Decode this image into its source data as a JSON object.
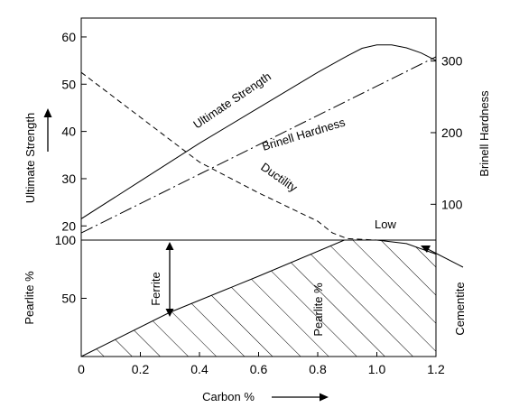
{
  "chart_data": [
    {
      "type": "line",
      "x_range": [
        0,
        1.2
      ],
      "y_left": {
        "label": "Ultimate Strength",
        "ticks": [
          20,
          30,
          40,
          50,
          60
        ],
        "range": [
          17,
          64
        ]
      },
      "y_right": {
        "label": "Brinell Hardness",
        "ticks": [
          100,
          200,
          300
        ],
        "range": [
          50,
          360
        ]
      },
      "series": [
        {
          "name": "Ultimate Strength",
          "axis": "left",
          "style": "solid",
          "points": [
            [
              0,
              21.5
            ],
            [
              0.2,
              29.5
            ],
            [
              0.4,
              37.5
            ],
            [
              0.6,
              45
            ],
            [
              0.8,
              52.5
            ],
            [
              0.9,
              56
            ],
            [
              0.95,
              57.6
            ],
            [
              1.0,
              58.3
            ],
            [
              1.05,
              58.3
            ],
            [
              1.1,
              57.7
            ],
            [
              1.15,
              56.6
            ],
            [
              1.2,
              55
            ]
          ]
        },
        {
          "name": "Brinell Hardness",
          "axis": "right",
          "style": "dash-dot",
          "points": [
            [
              0,
              60
            ],
            [
              0.4,
              142
            ],
            [
              0.8,
              224
            ],
            [
              1.2,
              306
            ]
          ]
        },
        {
          "name": "Ductility",
          "axis": "left",
          "style": "dashed",
          "points": [
            [
              0,
              52.5
            ],
            [
              0.2,
              43
            ],
            [
              0.4,
              33.5
            ],
            [
              0.6,
              27
            ],
            [
              0.8,
              21
            ],
            [
              0.85,
              18.5
            ],
            [
              0.9,
              17.3
            ],
            [
              1.0,
              17
            ]
          ]
        }
      ],
      "annotations": [
        "Low"
      ]
    },
    {
      "type": "area",
      "x_label": "Carbon %",
      "x_ticks": [
        "0",
        "0.2",
        "0.4",
        "0.6",
        "0.8",
        "1.0",
        "1.2"
      ],
      "x_range": [
        0,
        1.2
      ],
      "y_label": "Pearlite %",
      "y_ticks": [
        50,
        100
      ],
      "y_range": [
        0,
        100
      ],
      "series": [
        {
          "name": "Pearlite %",
          "points": [
            [
              0,
              0
            ],
            [
              0.3,
              38
            ],
            [
              0.6,
              69
            ],
            [
              0.89,
              100
            ],
            [
              1.0,
              100
            ],
            [
              1.1,
              97
            ],
            [
              1.2,
              88
            ]
          ]
        }
      ],
      "annotations": [
        "Ferrite",
        "Cementite"
      ]
    }
  ]
}
